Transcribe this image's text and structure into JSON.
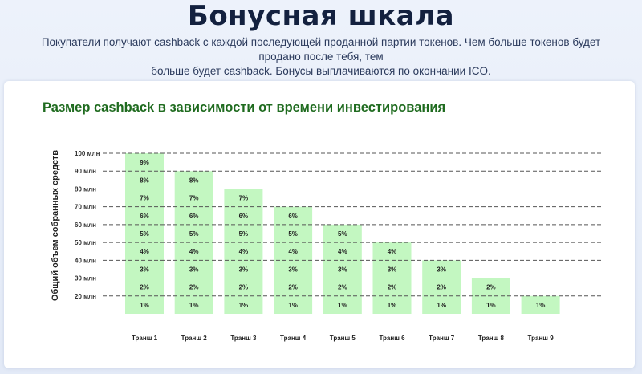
{
  "header": {
    "title": "Бонусная шкала",
    "description_line1": "Покупатели получают cashback с каждой последующей проданной партии токенов. Чем больше токенов будет продано после тебя, тем",
    "description_line2": "больше будет cashback. Бонусы выплачиваются по окончании ICO."
  },
  "colors": {
    "bar_fill": "#c3f7c1",
    "grid_line": "#555555",
    "chart_title": "#1f6b1f"
  },
  "chart_data": {
    "type": "bar",
    "title": "Размер cashback в зависимости от времени инвестирования",
    "xlabel": "",
    "ylabel": "Общий объем собранных средств",
    "y_ticks": [
      "100 млн",
      "90 млн",
      "80 млн",
      "70 млн",
      "60 млн",
      "50 млн",
      "40 млн",
      "30 млн",
      "20 млн"
    ],
    "y_tick_values": [
      100,
      90,
      80,
      70,
      60,
      50,
      40,
      30,
      20
    ],
    "ylim": [
      10,
      100
    ],
    "grid": "horizontal dashed",
    "categories": [
      "Транш 1",
      "Транш 2",
      "Транш 3",
      "Транш 4",
      "Транш 5",
      "Транш 6",
      "Транш 7",
      "Транш 8",
      "Транш 9"
    ],
    "values": [
      100,
      90,
      80,
      70,
      60,
      50,
      40,
      30,
      20
    ],
    "segment_labels": [
      [
        "1%",
        "2%",
        "3%",
        "4%",
        "5%",
        "6%",
        "7%",
        "8%",
        "9%"
      ],
      [
        "1%",
        "2%",
        "3%",
        "4%",
        "5%",
        "6%",
        "7%",
        "8%"
      ],
      [
        "1%",
        "2%",
        "3%",
        "4%",
        "5%",
        "6%",
        "7%"
      ],
      [
        "1%",
        "2%",
        "3%",
        "4%",
        "5%",
        "6%"
      ],
      [
        "1%",
        "2%",
        "3%",
        "4%",
        "5%"
      ],
      [
        "1%",
        "2%",
        "3%",
        "4%"
      ],
      [
        "1%",
        "2%",
        "3%"
      ],
      [
        "1%",
        "2%"
      ],
      [
        "1%"
      ]
    ]
  }
}
